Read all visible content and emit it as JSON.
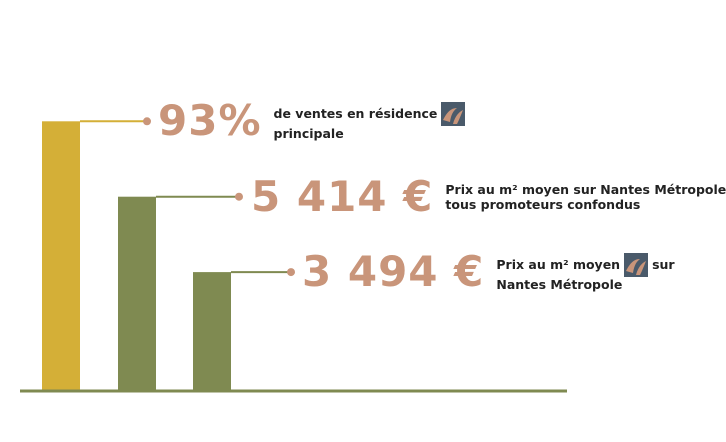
{
  "chart_data": {
    "type": "bar",
    "ylim": [
      0,
      100
    ],
    "series": [
      {
        "values": [
          93,
          67,
          41
        ],
        "colors": [
          "#d4af37",
          "#7f8a51",
          "#7f8a51"
        ]
      }
    ],
    "annotations": [
      {
        "value": "93%",
        "text_lines": [
          "de ventes en résidence",
          "principale"
        ]
      },
      {
        "value": "5 414 €",
        "text_lines": [
          "Prix au m² moyen sur Nantes Métropole",
          "tous promoteurs confondus"
        ]
      },
      {
        "value": "3 494 €",
        "text_line1_before": "Prix au m² moyen",
        "text_line1_after": "sur",
        "text_line2": "Nantes Métropole"
      }
    ]
  },
  "colors": {
    "accent": "#c9957a",
    "bar_gold": "#d4af37",
    "bar_olive": "#7f8a51",
    "baseline": "#7f8a51",
    "logo_bg": "#4a5a6a",
    "logo_mark": "#c9957a"
  },
  "icons": {
    "logo": "logo-icon"
  }
}
